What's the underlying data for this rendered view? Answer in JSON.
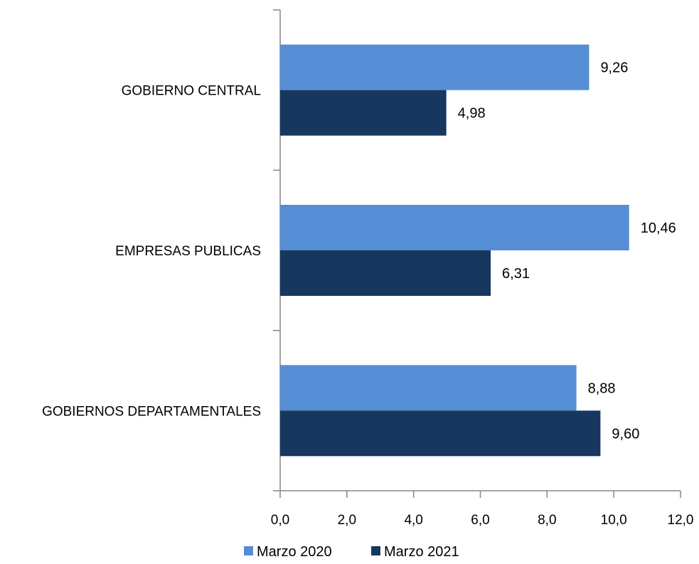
{
  "chart_data": {
    "type": "bar",
    "orientation": "horizontal",
    "categories": [
      "GOBIERNO CENTRAL",
      "EMPRESAS PUBLICAS",
      "GOBIERNOS DEPARTAMENTALES"
    ],
    "series": [
      {
        "name": "Marzo 2020",
        "values": [
          9.26,
          10.46,
          8.88
        ],
        "labels": [
          "9,26",
          "10,46",
          "8,88"
        ],
        "color": "#558ed5"
      },
      {
        "name": "Marzo 2021",
        "values": [
          4.98,
          6.31,
          9.6
        ],
        "labels": [
          "4,98",
          "6,31",
          "9,60"
        ],
        "color": "#17375e"
      }
    ],
    "xlim": [
      0,
      12
    ],
    "xticks": [
      0,
      2,
      4,
      6,
      8,
      10,
      12
    ],
    "xtick_labels": [
      "0,0",
      "2,0",
      "4,0",
      "6,0",
      "8,0",
      "10,0",
      "12,0"
    ],
    "title": "",
    "xlabel": "",
    "ylabel": "",
    "grid": false,
    "legend_position": "bottom"
  }
}
